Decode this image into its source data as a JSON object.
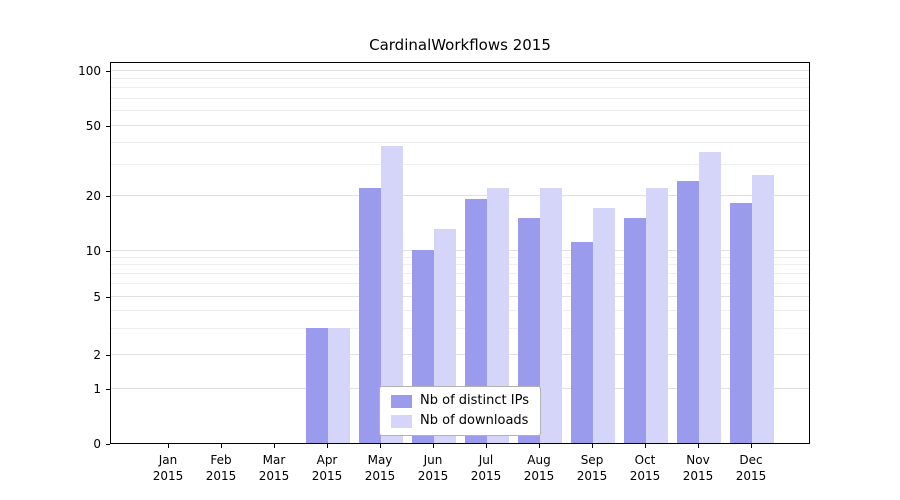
{
  "chart_data": {
    "type": "bar",
    "title": "CardinalWorkflows 2015",
    "categories": [
      "Jan 2015",
      "Feb 2015",
      "Mar 2015",
      "Apr 2015",
      "May 2015",
      "Jun 2015",
      "Jul 2015",
      "Aug 2015",
      "Sep 2015",
      "Oct 2015",
      "Nov 2015",
      "Dec 2015"
    ],
    "series": [
      {
        "name": "Nb of distinct IPs",
        "color": "#9b9bee",
        "values": [
          0,
          0,
          0,
          3,
          22,
          10,
          19,
          15,
          11,
          15,
          24,
          18
        ]
      },
      {
        "name": "Nb of downloads",
        "color": "#d5d5fa",
        "values": [
          0,
          0,
          0,
          3,
          38,
          13,
          22,
          22,
          17,
          22,
          35,
          26
        ]
      }
    ],
    "yscale": "symlog",
    "yticks": [
      0,
      1,
      2,
      5,
      10,
      20,
      50,
      100
    ],
    "minor_gridlines": [
      3,
      4,
      6,
      7,
      8,
      9,
      30,
      40,
      60,
      70,
      80,
      90
    ],
    "ylim": [
      0,
      130
    ],
    "grid": true,
    "legend_position": "lower center"
  }
}
